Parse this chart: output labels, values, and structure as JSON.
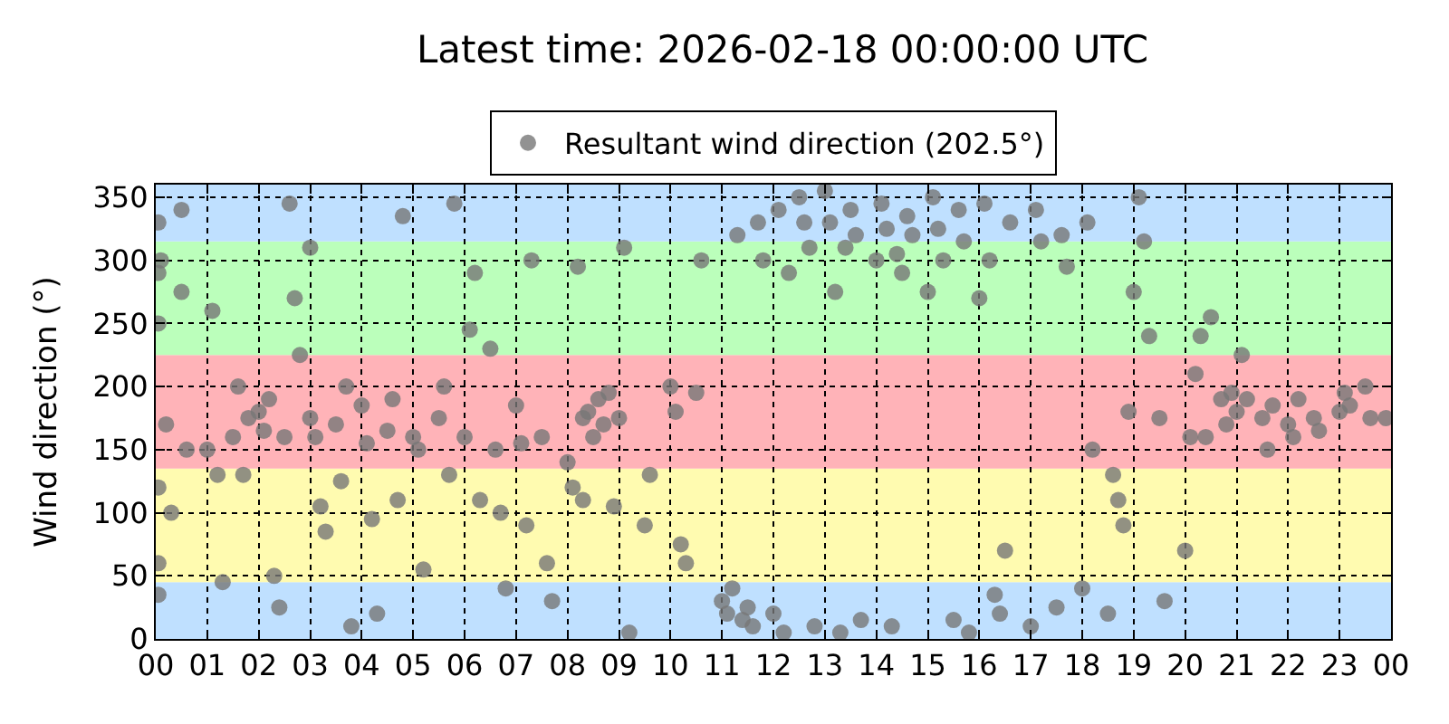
{
  "chart_data": {
    "type": "scatter",
    "title": "Latest time: 2026-02-18 00:00:00 UTC",
    "ylabel": "Wind direction (°)",
    "series": [
      {
        "name": "Resultant wind direction (202.5°)",
        "color": "#777777",
        "x": [
          0.05,
          0.05,
          0.05,
          0.05,
          0.05,
          0.05,
          0.1,
          0.2,
          0.3,
          0.5,
          0.5,
          0.6,
          1.0,
          1.1,
          1.2,
          1.3,
          1.5,
          1.6,
          1.7,
          1.8,
          2.0,
          2.1,
          2.2,
          2.3,
          2.4,
          2.5,
          2.6,
          2.7,
          2.8,
          3.0,
          3.0,
          3.1,
          3.2,
          3.3,
          3.5,
          3.6,
          3.7,
          3.8,
          4.0,
          4.1,
          4.2,
          4.3,
          4.5,
          4.6,
          4.7,
          4.8,
          5.0,
          5.1,
          5.2,
          5.5,
          5.6,
          5.7,
          5.8,
          6.0,
          6.1,
          6.2,
          6.3,
          6.5,
          6.6,
          6.7,
          6.8,
          7.0,
          7.1,
          7.2,
          7.3,
          7.5,
          7.6,
          7.7,
          8.0,
          8.1,
          8.2,
          8.3,
          8.3,
          8.4,
          8.5,
          8.6,
          8.7,
          8.8,
          8.9,
          9.0,
          9.1,
          9.2,
          9.5,
          9.6,
          10.0,
          10.1,
          10.2,
          10.3,
          10.5,
          10.6,
          11.0,
          11.1,
          11.2,
          11.3,
          11.4,
          11.5,
          11.6,
          11.7,
          11.8,
          12.0,
          12.1,
          12.2,
          12.3,
          12.5,
          12.6,
          12.7,
          12.8,
          13.0,
          13.1,
          13.2,
          13.3,
          13.4,
          13.5,
          13.6,
          13.7,
          14.0,
          14.1,
          14.2,
          14.3,
          14.4,
          14.5,
          14.6,
          14.7,
          15.0,
          15.1,
          15.2,
          15.3,
          15.5,
          15.6,
          15.7,
          15.8,
          16.0,
          16.1,
          16.2,
          16.3,
          16.4,
          16.5,
          16.6,
          17.0,
          17.1,
          17.2,
          17.5,
          17.6,
          17.7,
          18.0,
          18.1,
          18.2,
          18.5,
          18.6,
          18.7,
          18.8,
          18.9,
          19.0,
          19.1,
          19.2,
          19.3,
          19.5,
          19.6,
          20.0,
          20.1,
          20.2,
          20.3,
          20.4,
          20.5,
          20.7,
          20.8,
          20.9,
          21.0,
          21.1,
          21.2,
          21.5,
          21.6,
          21.7,
          22.0,
          22.1,
          22.2,
          22.5,
          22.6,
          23.0,
          23.1,
          23.2,
          23.5,
          23.6,
          23.9
        ],
        "values": [
          330,
          290,
          250,
          120,
          60,
          35,
          300,
          170,
          100,
          340,
          275,
          150,
          150,
          260,
          130,
          45,
          160,
          200,
          130,
          175,
          180,
          165,
          190,
          50,
          25,
          160,
          345,
          270,
          225,
          310,
          175,
          160,
          105,
          85,
          170,
          125,
          200,
          10,
          185,
          155,
          95,
          20,
          165,
          190,
          110,
          335,
          160,
          150,
          55,
          175,
          200,
          130,
          345,
          160,
          245,
          290,
          110,
          230,
          150,
          100,
          40,
          185,
          155,
          90,
          300,
          160,
          60,
          30,
          140,
          120,
          295,
          175,
          110,
          180,
          160,
          190,
          170,
          195,
          105,
          175,
          310,
          5,
          90,
          130,
          200,
          180,
          75,
          60,
          195,
          300,
          30,
          20,
          40,
          320,
          15,
          25,
          10,
          330,
          300,
          20,
          340,
          5,
          290,
          350,
          330,
          310,
          10,
          355,
          330,
          275,
          5,
          310,
          340,
          320,
          15,
          300,
          345,
          325,
          10,
          305,
          290,
          335,
          320,
          275,
          350,
          325,
          300,
          15,
          340,
          315,
          5,
          270,
          345,
          300,
          35,
          20,
          70,
          330,
          10,
          340,
          315,
          25,
          320,
          295,
          40,
          330,
          150,
          20,
          130,
          110,
          90,
          180,
          275,
          350,
          315,
          240,
          175,
          30,
          70,
          160,
          210,
          240,
          160,
          255,
          190,
          170,
          195,
          180,
          225,
          190,
          175,
          150,
          185,
          170,
          160,
          190,
          175,
          165,
          180,
          195,
          185,
          200,
          175,
          175
        ]
      }
    ],
    "xlim": [
      0,
      24
    ],
    "xticks": [
      {
        "value": 0,
        "label": "00"
      },
      {
        "value": 1,
        "label": "01"
      },
      {
        "value": 2,
        "label": "02"
      },
      {
        "value": 3,
        "label": "03"
      },
      {
        "value": 4,
        "label": "04"
      },
      {
        "value": 5,
        "label": "05"
      },
      {
        "value": 6,
        "label": "06"
      },
      {
        "value": 7,
        "label": "07"
      },
      {
        "value": 8,
        "label": "08"
      },
      {
        "value": 9,
        "label": "09"
      },
      {
        "value": 10,
        "label": "10"
      },
      {
        "value": 11,
        "label": "11"
      },
      {
        "value": 12,
        "label": "12"
      },
      {
        "value": 13,
        "label": "13"
      },
      {
        "value": 14,
        "label": "14"
      },
      {
        "value": 15,
        "label": "15"
      },
      {
        "value": 16,
        "label": "16"
      },
      {
        "value": 17,
        "label": "17"
      },
      {
        "value": 18,
        "label": "18"
      },
      {
        "value": 19,
        "label": "19"
      },
      {
        "value": 20,
        "label": "20"
      },
      {
        "value": 21,
        "label": "21"
      },
      {
        "value": 22,
        "label": "22"
      },
      {
        "value": 23,
        "label": "23"
      },
      {
        "value": 24,
        "label": "00"
      }
    ],
    "ylim": [
      0,
      360
    ],
    "yticks": [
      0,
      50,
      100,
      150,
      200,
      250,
      300,
      350
    ],
    "bands": [
      {
        "axis": "y",
        "from": 0,
        "to": 45,
        "color": "#bfe0ff"
      },
      {
        "axis": "y",
        "from": 45,
        "to": 135,
        "color": "#fffbb0"
      },
      {
        "axis": "y",
        "from": 135,
        "to": 225,
        "color": "#ffb3b8"
      },
      {
        "axis": "y",
        "from": 225,
        "to": 315,
        "color": "#bbffbb"
      },
      {
        "axis": "y",
        "from": 315,
        "to": 360,
        "color": "#bfe0ff"
      }
    ],
    "grid": true,
    "legend": "top",
    "marker": "circle"
  }
}
